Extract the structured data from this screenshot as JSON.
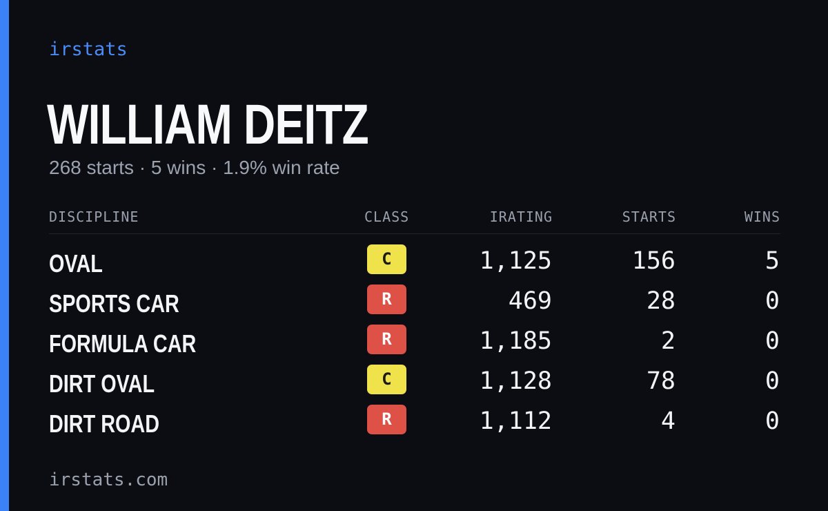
{
  "brand": "irstats",
  "driver": {
    "name": "WILLIAM DEITZ",
    "summary": "268 starts · 5 wins · 1.9% win rate"
  },
  "table": {
    "headers": {
      "discipline": "DISCIPLINE",
      "class": "CLASS",
      "irating": "IRATING",
      "starts": "STARTS",
      "wins": "WINS"
    },
    "rows": [
      {
        "discipline": "OVAL",
        "class": "C",
        "irating": "1,125",
        "starts": "156",
        "wins": "5"
      },
      {
        "discipline": "SPORTS CAR",
        "class": "R",
        "irating": "469",
        "starts": "28",
        "wins": "0"
      },
      {
        "discipline": "FORMULA CAR",
        "class": "R",
        "irating": "1,185",
        "starts": "2",
        "wins": "0"
      },
      {
        "discipline": "DIRT OVAL",
        "class": "C",
        "irating": "1,128",
        "starts": "78",
        "wins": "0"
      },
      {
        "discipline": "DIRT ROAD",
        "class": "R",
        "irating": "1,112",
        "starts": "4",
        "wins": "0"
      }
    ]
  },
  "class_colors": {
    "C": {
      "background": "#f0e24a",
      "text": "#1a1a1a"
    },
    "R": {
      "background": "#dd5147",
      "text": "#ffffff"
    }
  },
  "accent_color": "#3b82f6",
  "footer": "irstats.com"
}
